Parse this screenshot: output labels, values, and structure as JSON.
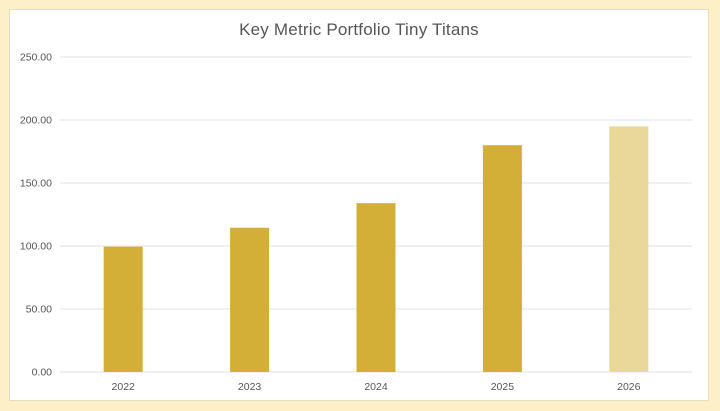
{
  "chart_data": {
    "type": "bar",
    "title": "Key Metric Portfolio Tiny Titans",
    "xlabel": "",
    "ylabel": "",
    "categories": [
      "2022",
      "2023",
      "2024",
      "2025",
      "2026"
    ],
    "values": [
      99.5,
      114.5,
      134,
      180,
      195
    ],
    "ylim": [
      0,
      250
    ],
    "yticks": [
      "0.00",
      "50.00",
      "100.00",
      "150.00",
      "200.00",
      "250.00"
    ],
    "grid": true,
    "legend": "none",
    "colors": {
      "bar": "#d4af37",
      "bar_projected": "#ead79a",
      "grid": "#e0e0e0",
      "background": "#fdf0c9"
    },
    "projected_categories": [
      "2026"
    ]
  }
}
